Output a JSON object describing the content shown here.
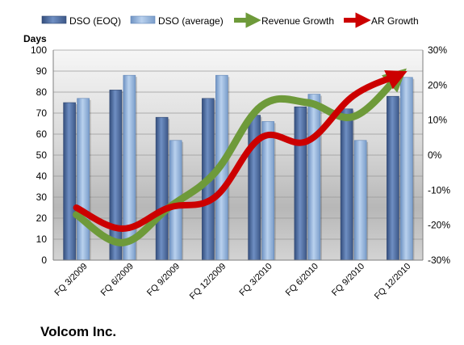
{
  "chart_data": {
    "type": "bar",
    "title": "Volcom Inc.",
    "ylabel": "Days",
    "categories": [
      "FQ 3/2009",
      "FQ 6/2009",
      "FQ 9/2009",
      "FQ 12/2009",
      "FQ 3/2010",
      "FQ 6/2010",
      "FQ 9/2010",
      "FQ 12/2010"
    ],
    "ylim": [
      0,
      100
    ],
    "y2lim": [
      -30,
      30
    ],
    "yticks": [
      "0",
      "10",
      "20",
      "30",
      "40",
      "50",
      "60",
      "70",
      "80",
      "90",
      "100"
    ],
    "y2ticks": [
      "-30%",
      "-20%",
      "-10%",
      "0%",
      "10%",
      "20%",
      "30%"
    ],
    "legend_position": "top",
    "series": [
      {
        "name": "DSO (EOQ)",
        "type": "bar",
        "axis": "left",
        "color": "#4f6fa5",
        "values": [
          75,
          81,
          68,
          77,
          69,
          73,
          72,
          78
        ]
      },
      {
        "name": "DSO (average)",
        "type": "bar",
        "axis": "left",
        "color": "#8fb2dd",
        "values": [
          77,
          88,
          57,
          88,
          66,
          79,
          57,
          87
        ]
      },
      {
        "name": "Revenue Growth",
        "type": "line",
        "axis": "right",
        "color": "#6e9a3a",
        "values": [
          -17,
          -25,
          -15,
          -5,
          14,
          15,
          11,
          23
        ]
      },
      {
        "name": "AR Growth",
        "type": "line",
        "axis": "right",
        "color": "#cc0000",
        "values": [
          -15,
          -21,
          -15,
          -12,
          5,
          4,
          17,
          23
        ]
      }
    ]
  }
}
